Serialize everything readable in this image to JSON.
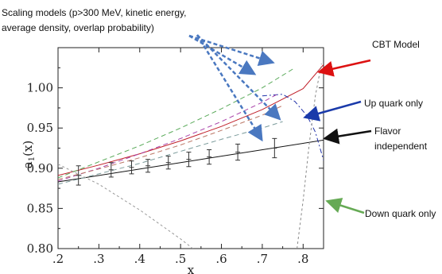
{
  "chart_data": {
    "type": "line",
    "title": "",
    "xlabel": "x",
    "ylabel": "a",
    "ylabel_subscript": "1",
    "ylabel_suffix": "(x)",
    "xlim": [
      0.2,
      0.85
    ],
    "ylim": [
      0.8,
      1.05
    ],
    "x_ticks": [
      0.2,
      0.3,
      0.4,
      0.5,
      0.6,
      0.7,
      0.8
    ],
    "x_tick_labels": [
      ".2",
      ".3",
      ".4",
      ".5",
      ".6",
      ".7",
      ".8"
    ],
    "y_ticks": [
      0.8,
      0.85,
      0.9,
      0.95,
      1.0
    ],
    "y_tick_labels": [
      "0.80",
      "0.85",
      "0.90",
      "0.95",
      "1.00"
    ],
    "grid": false,
    "series": [
      {
        "name": "CBT Model",
        "color": "#c0202a",
        "style": "solid",
        "x": [
          0.2,
          0.3,
          0.4,
          0.5,
          0.6,
          0.7,
          0.8,
          0.85
        ],
        "y": [
          0.891,
          0.904,
          0.918,
          0.934,
          0.952,
          0.973,
          0.999,
          1.029
        ]
      },
      {
        "name": "Flavor independent",
        "color": "#111111",
        "style": "solid",
        "x": [
          0.2,
          0.85
        ],
        "y": [
          0.883,
          0.935
        ]
      },
      {
        "name": "Up quark only",
        "color": "#2233aa",
        "style": "dash-dot",
        "x": [
          0.7,
          0.75,
          0.78,
          0.81,
          0.83,
          0.85
        ],
        "y": [
          0.99,
          0.992,
          0.983,
          0.965,
          0.945,
          0.91
        ]
      },
      {
        "name": "Down quark only",
        "color": "#888888",
        "style": "short-dash",
        "x": [
          0.785,
          0.8,
          0.815,
          0.83,
          0.845
        ],
        "y": [
          0.8,
          0.86,
          0.93,
          0.99,
          1.03
        ]
      },
      {
        "color": "#5aaa5a",
        "style": "dash",
        "x": [
          0.2,
          0.3,
          0.4,
          0.5,
          0.6,
          0.7,
          0.78
        ],
        "y": [
          0.888,
          0.908,
          0.928,
          0.95,
          0.974,
          1.0,
          1.025
        ]
      },
      {
        "color": "#aa44aa",
        "style": "dash",
        "x": [
          0.2,
          0.3,
          0.4,
          0.5,
          0.6,
          0.7,
          0.74
        ],
        "y": [
          0.884,
          0.9,
          0.918,
          0.937,
          0.958,
          0.982,
          0.993
        ]
      },
      {
        "color": "#bb7766",
        "style": "dash",
        "x": [
          0.2,
          0.3,
          0.4,
          0.5,
          0.6,
          0.7,
          0.75
        ],
        "y": [
          0.886,
          0.899,
          0.913,
          0.929,
          0.947,
          0.966,
          0.978
        ]
      },
      {
        "color": "#7a9a9a",
        "style": "dash",
        "x": [
          0.2,
          0.3,
          0.4,
          0.5,
          0.6,
          0.7,
          0.75
        ],
        "y": [
          0.88,
          0.893,
          0.906,
          0.921,
          0.936,
          0.95,
          0.958
        ]
      },
      {
        "color": "#999999",
        "style": "short-dash",
        "x": [
          0.2,
          0.3,
          0.4,
          0.5,
          0.53
        ],
        "y": [
          0.905,
          0.88,
          0.848,
          0.812,
          0.8
        ]
      }
    ],
    "data_points": {
      "x": [
        0.25,
        0.33,
        0.38,
        0.42,
        0.47,
        0.52,
        0.57,
        0.64,
        0.73
      ],
      "y": [
        0.891,
        0.898,
        0.901,
        0.903,
        0.907,
        0.911,
        0.914,
        0.92,
        0.925
      ],
      "err": [
        0.012,
        0.009,
        0.008,
        0.008,
        0.008,
        0.009,
        0.009,
        0.01,
        0.012
      ]
    },
    "annotations": [
      {
        "name": "scaling-models",
        "lines": [
          "Scaling models (p>300 MeV, kinetic energy,",
          "average density, overlap probability)"
        ],
        "arrow_color": "#4a78c0"
      },
      {
        "name": "cbt-model",
        "lines": [
          "CBT Model"
        ],
        "arrow_color": "#dd1111"
      },
      {
        "name": "up-quark",
        "lines": [
          "Up quark only"
        ],
        "arrow_color": "#1a3aaa"
      },
      {
        "name": "flavor-independent",
        "lines": [
          "Flavor",
          "independent"
        ],
        "arrow_color": "#111111"
      },
      {
        "name": "down-quark",
        "lines": [
          "Down quark only"
        ],
        "arrow_color": "#66aa55"
      }
    ]
  }
}
